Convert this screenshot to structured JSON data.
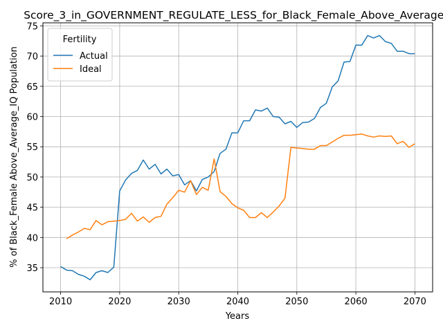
{
  "chart_data": {
    "type": "line",
    "title": "Score_3_in_GOVERNMENT_REGULATE_LESS_for_Black_Female_Above_Average_IQ",
    "xlabel": "Years",
    "ylabel": "% of Black_Female Above_Average_IQ Population",
    "xlim": [
      2007,
      2073
    ],
    "ylim": [
      31,
      75.5
    ],
    "xticks": [
      2010,
      2020,
      2030,
      2040,
      2050,
      2060,
      2070
    ],
    "yticks": [
      35,
      40,
      45,
      50,
      55,
      60,
      65,
      70,
      75
    ],
    "grid": true,
    "legend": {
      "title": "Fertility",
      "position": "top-left"
    },
    "series": [
      {
        "name": "Actual",
        "color": "#1f77b4",
        "x": [
          2010,
          2011,
          2012,
          2013,
          2014,
          2015,
          2016,
          2017,
          2018,
          2019,
          2020,
          2021,
          2022,
          2023,
          2024,
          2025,
          2026,
          2027,
          2028,
          2029,
          2030,
          2031,
          2032,
          2033,
          2034,
          2035,
          2036,
          2037,
          2038,
          2039,
          2040,
          2041,
          2042,
          2043,
          2044,
          2045,
          2046,
          2047,
          2048,
          2049,
          2050,
          2051,
          2052,
          2053,
          2054,
          2055,
          2056,
          2057,
          2058,
          2059,
          2060,
          2061,
          2062,
          2063,
          2064,
          2065,
          2066,
          2067,
          2068,
          2069,
          2070
        ],
        "values": [
          35.2,
          34.6,
          34.5,
          33.9,
          33.6,
          33.0,
          34.2,
          34.5,
          34.2,
          35.1,
          47.7,
          49.5,
          50.6,
          51.1,
          52.8,
          51.3,
          52.1,
          50.5,
          51.3,
          50.2,
          50.4,
          48.7,
          49.4,
          47.7,
          49.6,
          50.0,
          50.9,
          53.9,
          54.6,
          57.3,
          57.3,
          59.3,
          59.3,
          61.1,
          60.9,
          61.4,
          60.0,
          59.9,
          58.8,
          59.2,
          58.2,
          59.0,
          59.1,
          59.7,
          61.5,
          62.2,
          64.9,
          65.9,
          69.0,
          69.1,
          71.8,
          71.8,
          73.4,
          73.0,
          73.4,
          72.4,
          72.1,
          70.8,
          70.8,
          70.4,
          70.4
        ]
      },
      {
        "name": "Ideal",
        "color": "#ff7f0e",
        "x": [
          2011,
          2012,
          2013,
          2014,
          2015,
          2016,
          2017,
          2018,
          2019,
          2020,
          2021,
          2022,
          2023,
          2024,
          2025,
          2026,
          2027,
          2028,
          2029,
          2030,
          2031,
          2032,
          2033,
          2034,
          2035,
          2036,
          2037,
          2038,
          2039,
          2040,
          2041,
          2042,
          2043,
          2044,
          2045,
          2046,
          2047,
          2048,
          2049,
          2050,
          2051,
          2052,
          2053,
          2054,
          2055,
          2056,
          2057,
          2058,
          2059,
          2060,
          2061,
          2062,
          2063,
          2064,
          2065,
          2066,
          2067,
          2068,
          2069,
          2070
        ],
        "values": [
          39.8,
          40.4,
          40.9,
          41.5,
          41.3,
          42.8,
          42.1,
          42.6,
          42.7,
          42.8,
          43.0,
          44.0,
          42.7,
          43.4,
          42.5,
          43.3,
          43.5,
          45.5,
          46.6,
          47.8,
          47.5,
          49.4,
          47.1,
          48.3,
          47.8,
          53.0,
          47.6,
          46.8,
          45.6,
          44.9,
          44.5,
          43.3,
          43.3,
          44.1,
          43.3,
          44.2,
          45.2,
          46.5,
          54.9,
          54.8,
          54.7,
          54.6,
          54.6,
          55.2,
          55.2,
          55.8,
          56.4,
          56.9,
          56.9,
          57.0,
          57.1,
          56.8,
          56.6,
          56.8,
          56.7,
          56.8,
          55.5,
          55.9,
          54.9,
          55.5
        ]
      }
    ]
  }
}
